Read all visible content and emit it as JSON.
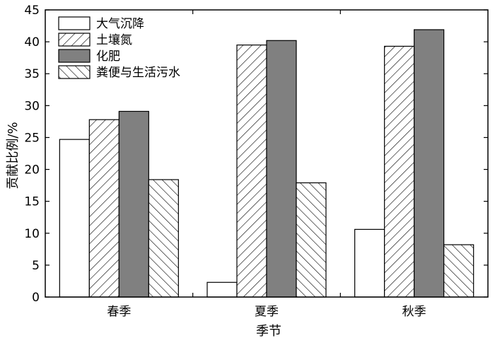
{
  "chart_data": {
    "type": "bar",
    "title": "",
    "xlabel": "季节",
    "ylabel": "贡献比例/%",
    "categories": [
      "春季",
      "夏季",
      "秋季"
    ],
    "ylim": [
      0,
      45
    ],
    "yticks": [
      0,
      5,
      10,
      15,
      20,
      25,
      30,
      35,
      40,
      45
    ],
    "grid": false,
    "legend_position": "top-left",
    "series": [
      {
        "name": "大气沉降",
        "values": [
          24.7,
          2.3,
          10.6
        ],
        "fill": "white"
      },
      {
        "name": "土壤氮",
        "values": [
          27.8,
          39.5,
          39.3
        ],
        "fill": "hatch-forward"
      },
      {
        "name": "化肥",
        "values": [
          29.1,
          40.2,
          41.9
        ],
        "fill": "#808080"
      },
      {
        "name": "粪便与生活污水",
        "values": [
          18.4,
          17.9,
          8.2
        ],
        "fill": "hatch-back"
      }
    ]
  }
}
